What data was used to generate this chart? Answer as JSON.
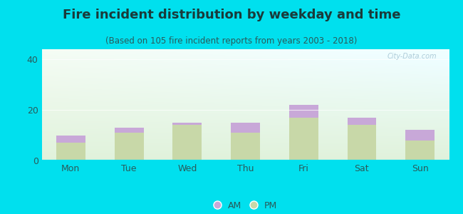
{
  "title": "Fire incident distribution by weekday and time",
  "subtitle": "(Based on 105 fire incident reports from years 2003 - 2018)",
  "categories": [
    "Mon",
    "Tue",
    "Wed",
    "Thu",
    "Fri",
    "Sat",
    "Sun"
  ],
  "pm_values": [
    7,
    11,
    14,
    11,
    17,
    14,
    8
  ],
  "am_values": [
    3,
    2,
    1,
    4,
    5,
    3,
    4
  ],
  "am_color": "#c8a8d8",
  "pm_color": "#c8d8a8",
  "background_outer": "#00e0ee",
  "bg_top_left": "#f5fdf5",
  "bg_top_right": "#e8fafa",
  "bg_bottom": "#c8e8c0",
  "ylim": [
    0,
    44
  ],
  "yticks": [
    0,
    20,
    40
  ],
  "bar_width": 0.5,
  "title_fontsize": 13,
  "subtitle_fontsize": 8.5,
  "tick_fontsize": 9,
  "legend_fontsize": 9,
  "title_color": "#1a3a3a",
  "subtitle_color": "#2a5a5a",
  "tick_color": "#2a5a5a"
}
